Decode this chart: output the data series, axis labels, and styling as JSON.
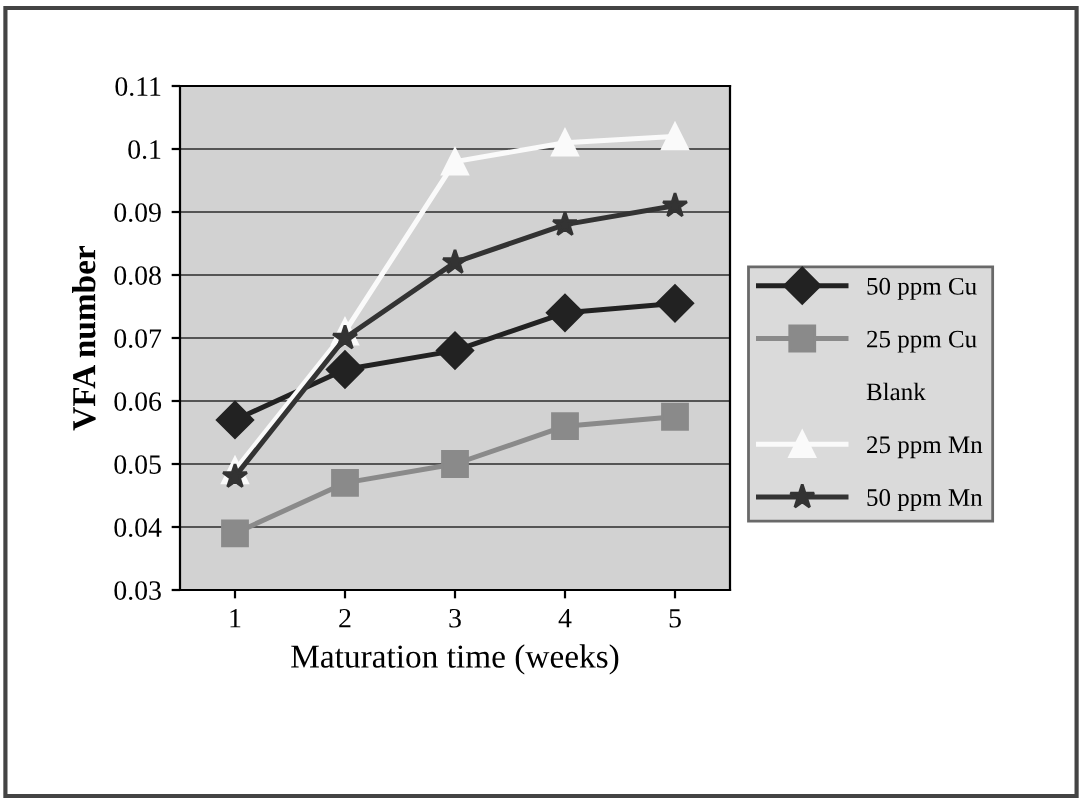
{
  "chart_data": {
    "type": "line",
    "xlabel": "Maturation time (weeks)",
    "ylabel": "VFA number",
    "categories": [
      "1",
      "2",
      "3",
      "4",
      "5"
    ],
    "ylim": [
      0.03,
      0.11
    ],
    "yticks": [
      0.03,
      0.04,
      0.05,
      0.06,
      0.07,
      0.08,
      0.09,
      0.1,
      0.11
    ],
    "grid": "y",
    "legend": "right",
    "series": [
      {
        "name": "50 ppm Cu",
        "color": "#222222",
        "marker": "diamond",
        "values": [
          0.057,
          0.065,
          0.068,
          0.074,
          0.0755
        ]
      },
      {
        "name": "25 ppm Cu",
        "color": "#8a8a8a",
        "marker": "square",
        "values": [
          0.039,
          0.047,
          0.05,
          0.056,
          0.0575
        ]
      },
      {
        "name": "Blank",
        "marker": "none",
        "values": [
          null,
          null,
          null,
          null,
          null
        ]
      },
      {
        "name": "25 ppm Mn",
        "color": "#fafafa",
        "marker": "triangle",
        "values": [
          0.049,
          0.071,
          0.098,
          0.101,
          0.102
        ]
      },
      {
        "name": "50 ppm Mn",
        "color": "#333333",
        "marker": "star",
        "values": [
          0.048,
          0.07,
          0.082,
          0.088,
          0.091
        ]
      }
    ]
  }
}
